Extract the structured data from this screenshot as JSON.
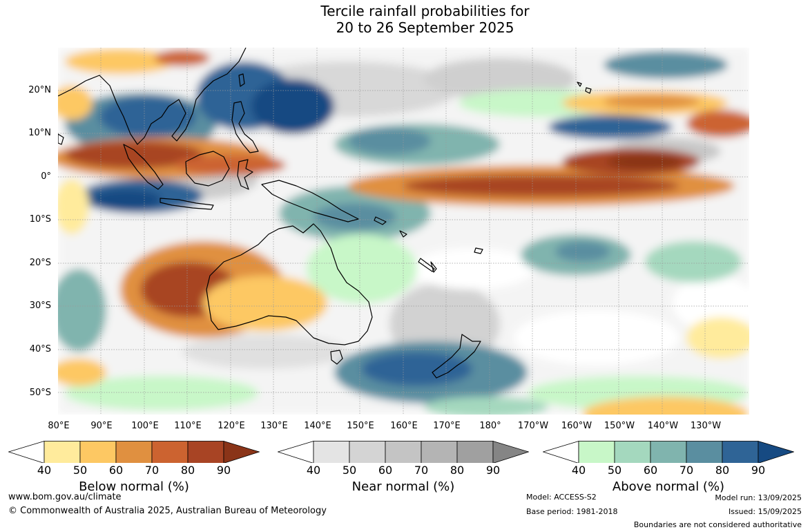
{
  "title_line1": "Tercile rainfall probabilities for",
  "title_line2": "20 to 26 September 2025",
  "lat_labels": [
    "20°N",
    "10°N",
    "0°",
    "10°S",
    "20°S",
    "30°S",
    "40°S",
    "50°S"
  ],
  "lon_labels": [
    "80°E",
    "90°E",
    "100°E",
    "110°E",
    "120°E",
    "130°E",
    "140°E",
    "150°E",
    "160°E",
    "170°E",
    "180°",
    "170°W",
    "160°W",
    "150°W",
    "140°W",
    "130°W"
  ],
  "legends": [
    {
      "caption": "Below normal (%)",
      "ticks": [
        "40",
        "50",
        "60",
        "70",
        "80",
        "90"
      ],
      "colors": [
        "#ffeb9c",
        "#fdc863",
        "#e09040",
        "#cc6330",
        "#a84424",
        "#8a3418"
      ]
    },
    {
      "caption": "Near normal (%)",
      "ticks": [
        "40",
        "50",
        "60",
        "70",
        "80",
        "90"
      ],
      "colors": [
        "#e4e4e4",
        "#d4d4d4",
        "#c4c4c4",
        "#b4b4b4",
        "#a0a0a0",
        "#858585"
      ]
    },
    {
      "caption": "Above normal (%)",
      "ticks": [
        "40",
        "50",
        "60",
        "70",
        "80",
        "90"
      ],
      "colors": [
        "#c8f7c8",
        "#a4d8be",
        "#80b4ae",
        "#5a8ea0",
        "#2f6496",
        "#164a82"
      ]
    }
  ],
  "footer": {
    "url": "www.bom.gov.au/climate",
    "copyright": "© Commonwealth of Australia 2025, Australian Bureau of Meteorology",
    "model": "Model: ACCESS-S2",
    "base_period": "Base period: 1981-2018",
    "model_run": "Model run: 13/09/2025",
    "issued": "Issued: 15/09/2025",
    "boundaries": "Boundaries are not considered authoritative"
  }
}
